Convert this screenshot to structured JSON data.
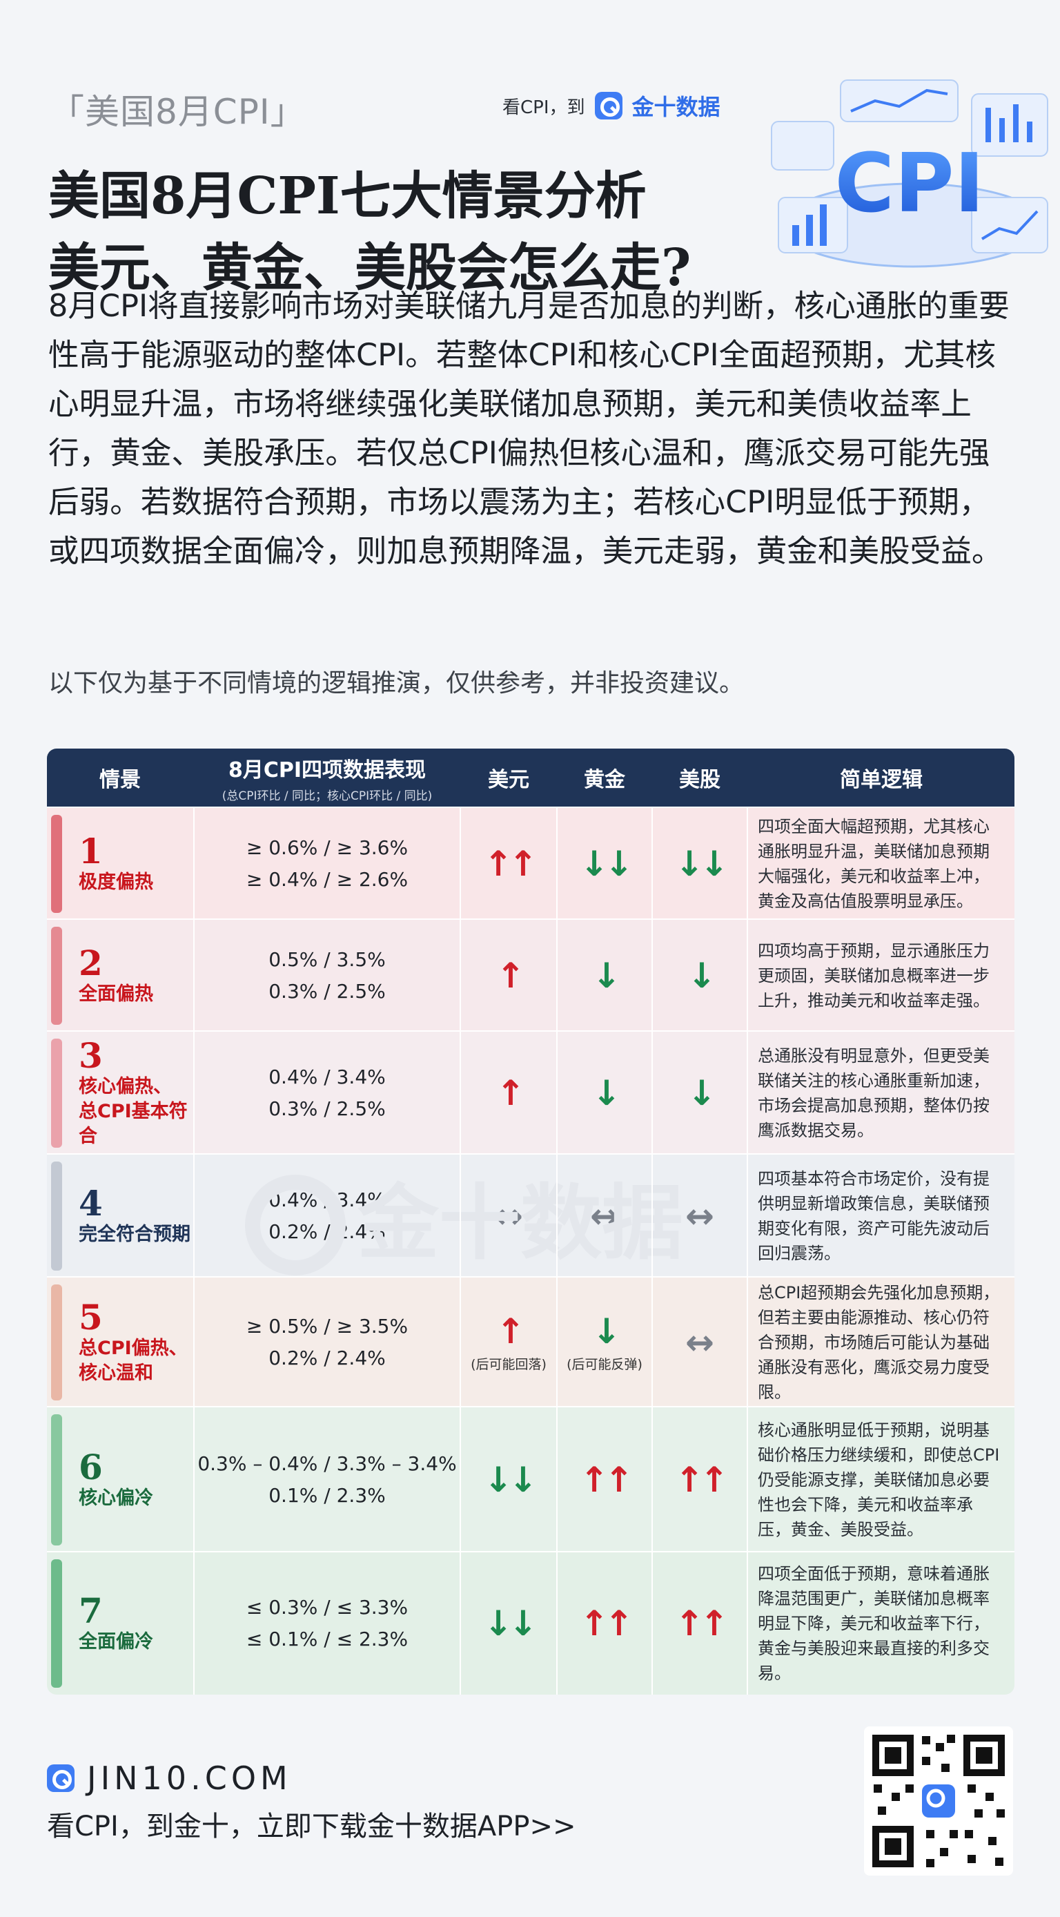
{
  "header": {
    "tag": "「美国8月CPI」",
    "slogan": "看CPI，到",
    "brand": "金十数据",
    "title_line1": "美国8月CPI七大情景分析",
    "title_line2": "美元、黄金、美股会怎么走?",
    "hero_text": "CPI"
  },
  "intro": "8月CPI将直接影响市场对美联储九月是否加息的判断，核心通胀的重要性高于能源驱动的整体CPI。若整体CPI和核心CPI全面超预期，尤其核心明显升温，市场将继续强化美联储加息预期，美元和美债收益率上行，黄金、美股承压。若仅总CPI偏热但核心温和，鹰派交易可能先强后弱。若数据符合预期，市场以震荡为主；若核心CPI明显低于预期，或四项数据全面偏冷，则加息预期降温，美元走弱，黄金和美股受益。",
  "note": "以下仅为基于不同情境的逻辑推演，仅供参考，并非投资建议。",
  "table": {
    "headers": {
      "scenario": "情景",
      "data": "8月CPI四项数据表现",
      "data_sub": "(总CPI环比 / 同比；核心CPI环比 / 同比)",
      "usd": "美元",
      "gold": "黄金",
      "stocks": "美股",
      "logic": "简单逻辑"
    },
    "rows": [
      {
        "num": "1",
        "label": "极度偏热",
        "color": "#c8161d",
        "stripe": "#e0707a",
        "bg": "#f9e6e8",
        "v1": "≥ 0.6% / ≥ 3.6%",
        "v2": "≥ 0.4% / ≥ 2.6%",
        "usd": "↑↑",
        "usd_dir": "up",
        "gold": "↓↓",
        "gold_dir": "down",
        "stk": "↓↓",
        "stk_dir": "down",
        "logic": "四项全面大幅超预期，尤其核心通胀明显升温，美联储加息预期大幅强化，美元和收益率上冲，黄金及高估值股票明显承压。"
      },
      {
        "num": "2",
        "label": "全面偏热",
        "color": "#c8161d",
        "stripe": "#e58a92",
        "bg": "#f6e9ec",
        "v1": "0.5% / 3.5%",
        "v2": "0.3% / 2.5%",
        "usd": "↑",
        "usd_dir": "up",
        "gold": "↓",
        "gold_dir": "down",
        "stk": "↓",
        "stk_dir": "down",
        "logic": "四项均高于预期，显示通胀压力更顽固，美联储加息概率进一步上升，推动美元和收益率走强。"
      },
      {
        "num": "3",
        "label": "核心偏热、\n总CPI基本符合",
        "color": "#c8161d",
        "stripe": "#eaa2ab",
        "bg": "#f5ecef",
        "v1": "0.4% / 3.4%",
        "v2": "0.3% / 2.5%",
        "usd": "↑",
        "usd_dir": "up",
        "gold": "↓",
        "gold_dir": "down",
        "stk": "↓",
        "stk_dir": "down",
        "logic": "总通胀没有明显意外，但更受美联储关注的核心通胀重新加速，市场会提高加息预期，整体仍按鹰派数据交易。"
      },
      {
        "num": "4",
        "label": "完全符合预期",
        "color": "#1f3457",
        "stripe": "#c3c9d3",
        "bg": "#eceff3",
        "v1": "0.4% / 3.4%",
        "v2": "0.2% / 2.4%",
        "usd": "↔",
        "usd_dir": "flat",
        "gold": "↔",
        "gold_dir": "flat",
        "stk": "↔",
        "stk_dir": "flat",
        "logic": "四项基本符合市场定价，没有提供明显新增政策信息，美联储预期变化有限，资产可能先波动后回归震荡。"
      },
      {
        "num": "5",
        "label": "总CPI偏热、\n核心温和",
        "color": "#c8161d",
        "stripe": "#e9b7a6",
        "bg": "#f5ece8",
        "v1": "≥ 0.5% / ≥ 3.5%",
        "v2": "0.2% / 2.4%",
        "usd": "↑",
        "usd_dir": "up",
        "usd_hint": "(后可能回落)",
        "gold": "↓",
        "gold_dir": "down",
        "gold_hint": "(后可能反弹)",
        "stk": "↔",
        "stk_dir": "flat",
        "logic": "总CPI超预期会先强化加息预期，但若主要由能源推动、核心仍符合预期，市场随后可能认为基础通胀没有恶化，鹰派交易力度受限。"
      },
      {
        "num": "6",
        "label": "核心偏冷",
        "color": "#1b6b3e",
        "stripe": "#88c89f",
        "bg": "#e6f1ea",
        "v1": "0.3% – 0.4% / 3.3% – 3.4%",
        "v2": "0.1% / 2.3%",
        "usd": "↓↓",
        "usd_dir": "down",
        "gold": "↑↑",
        "gold_dir": "up",
        "stk": "↑↑",
        "stk_dir": "up",
        "logic": "核心通胀明显低于预期，说明基础价格压力继续缓和，即使总CPI仍受能源支撑，美联储加息必要性也会下降，美元和收益率承压，黄金、美股受益。"
      },
      {
        "num": "7",
        "label": "全面偏冷",
        "color": "#1b6b3e",
        "stripe": "#6dbb8b",
        "bg": "#e3f0e7",
        "v1": "≤ 0.3% / ≤ 3.3%",
        "v2": "≤ 0.1% / ≤ 2.3%",
        "usd": "↓↓",
        "usd_dir": "down",
        "gold": "↑↑",
        "gold_dir": "up",
        "stk": "↑↑",
        "stk_dir": "up",
        "logic": "四项全面低于预期，意味着通胀降温范围更广，美联储加息概率明显下降，美元和收益率下行，黄金与美股迎来最直接的利多交易。"
      }
    ]
  },
  "watermark": "金十数据",
  "footer": {
    "site": "JIN10.COM",
    "cta": "看CPI，到金十，立即下载金十数据APP>>"
  }
}
